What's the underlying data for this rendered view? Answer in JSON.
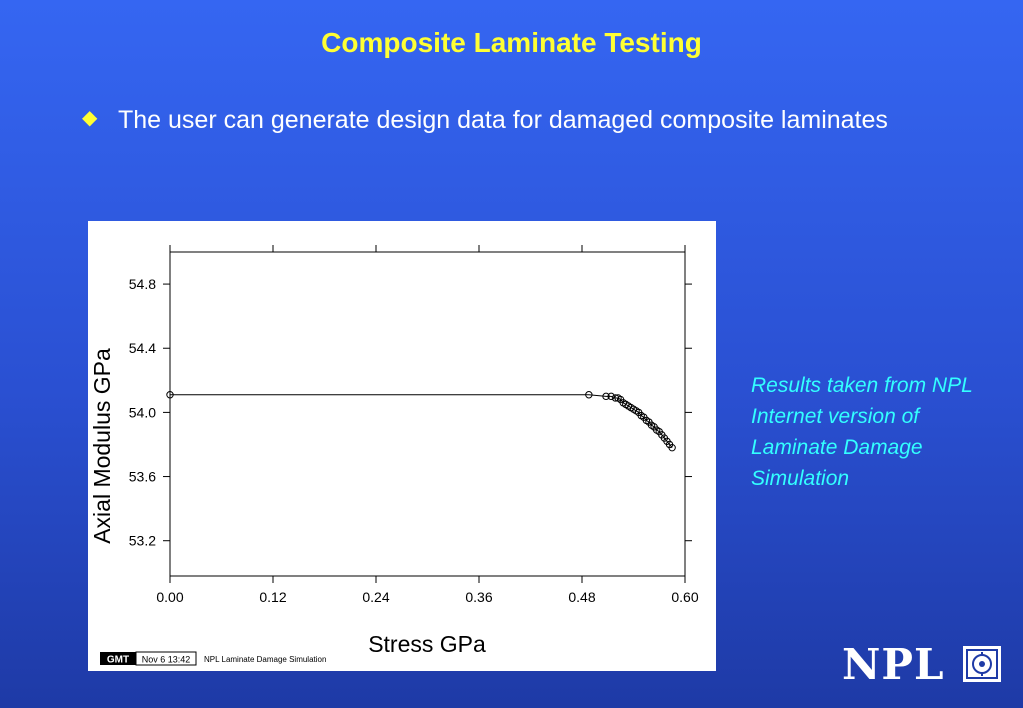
{
  "slide": {
    "title": "Composite Laminate Testing",
    "bullet": "The user can generate design data for damaged composite laminates",
    "note": "Results taken from NPL Internet version of Laminate Damage Simulation",
    "logo_text": "NPL"
  },
  "chart_data": {
    "type": "line",
    "title": "",
    "xlabel": "Stress GPa",
    "ylabel": "Axial Modulus GPa",
    "xlim": [
      0.0,
      0.6
    ],
    "ylim": [
      52.98,
      55.0
    ],
    "x_ticks": [
      0.0,
      0.12,
      0.24,
      0.36,
      0.48,
      0.6
    ],
    "x_tick_labels": [
      "0.00",
      "0.12",
      "0.24",
      "0.36",
      "0.48",
      "0.60"
    ],
    "y_ticks": [
      53.2,
      53.6,
      54.0,
      54.4,
      54.8
    ],
    "y_tick_labels": [
      "53.2",
      "53.6",
      "54.0",
      "54.4",
      "54.8"
    ],
    "grid": false,
    "series": [
      {
        "x": [
          0.0,
          0.488,
          0.508,
          0.514,
          0.519,
          0.522,
          0.525,
          0.528,
          0.531,
          0.534,
          0.537,
          0.54,
          0.543,
          0.546,
          0.549,
          0.552,
          0.555,
          0.558,
          0.561,
          0.564,
          0.567,
          0.57,
          0.573,
          0.576,
          0.579,
          0.582,
          0.585
        ],
        "values": [
          54.11,
          54.11,
          54.1,
          54.1,
          54.09,
          54.09,
          54.08,
          54.06,
          54.05,
          54.04,
          54.03,
          54.02,
          54.01,
          54.0,
          53.98,
          53.97,
          53.95,
          53.94,
          53.92,
          53.91,
          53.89,
          53.88,
          53.86,
          53.84,
          53.82,
          53.8,
          53.78
        ],
        "marker": "circle"
      }
    ],
    "footer": {
      "badge": "GMT",
      "timestamp": "Nov 6 13:42",
      "caption": "NPL Laminate Damage Simulation"
    }
  }
}
